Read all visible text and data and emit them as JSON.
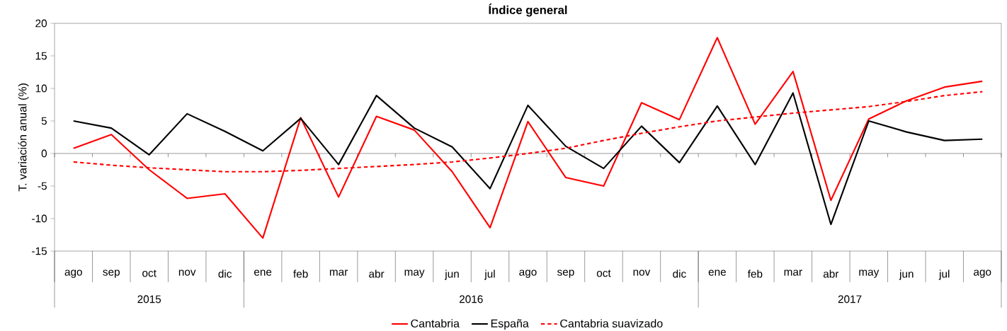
{
  "chart_data": {
    "type": "line",
    "title": "Índice general",
    "ylabel": "T. variación anual (%)",
    "categories": [
      "ago",
      "sep",
      "oct",
      "nov",
      "dic",
      "ene",
      "feb",
      "mar",
      "abr",
      "may",
      "jun",
      "jul",
      "ago",
      "sep",
      "oct",
      "nov",
      "dic",
      "ene",
      "feb",
      "mar",
      "abr",
      "may",
      "jun",
      "jul",
      "ago"
    ],
    "annotations": [
      "2015",
      "2016",
      "2017"
    ],
    "ref_lines": [
      {
        "axis": "y",
        "value": 0,
        "color": "#404040"
      }
    ],
    "ylim": [
      -15,
      20
    ],
    "yticks": [
      -15,
      -10,
      -5,
      0,
      5,
      10,
      15,
      20
    ],
    "grid": false,
    "legend": "bottom",
    "marker": "none",
    "series": [
      {
        "name": "Cantabria",
        "color": "#ff0000",
        "line_style": "solid",
        "values": [
          0.8,
          2.9,
          -2.5,
          -6.9,
          -6.2,
          -13.0,
          5.5,
          -6.7,
          5.7,
          3.6,
          -2.8,
          -11.4,
          4.9,
          -3.7,
          -5.0,
          7.8,
          5.2,
          17.8,
          4.5,
          12.6,
          -7.2,
          5.3,
          8.1,
          10.2,
          11.1
        ]
      },
      {
        "name": "España",
        "color": "#000000",
        "line_style": "solid",
        "values": [
          5.0,
          3.9,
          -0.2,
          6.1,
          3.4,
          0.4,
          5.4,
          -1.7,
          8.9,
          3.9,
          1.0,
          -5.4,
          7.4,
          1.1,
          -2.3,
          4.2,
          -1.4,
          7.3,
          -1.7,
          9.3,
          -10.9,
          5.0,
          3.3,
          2.0,
          2.2
        ]
      },
      {
        "name": "Cantabria suavizado",
        "color": "#ff0000",
        "line_style": "dashed",
        "values": [
          -1.3,
          -1.8,
          -2.2,
          -2.5,
          -2.8,
          -2.8,
          -2.6,
          -2.3,
          -2.0,
          -1.7,
          -1.3,
          -0.7,
          0.0,
          0.8,
          2.0,
          3.1,
          4.1,
          5.0,
          5.6,
          6.2,
          6.7,
          7.2,
          8.0,
          8.9,
          9.5
        ]
      }
    ]
  }
}
